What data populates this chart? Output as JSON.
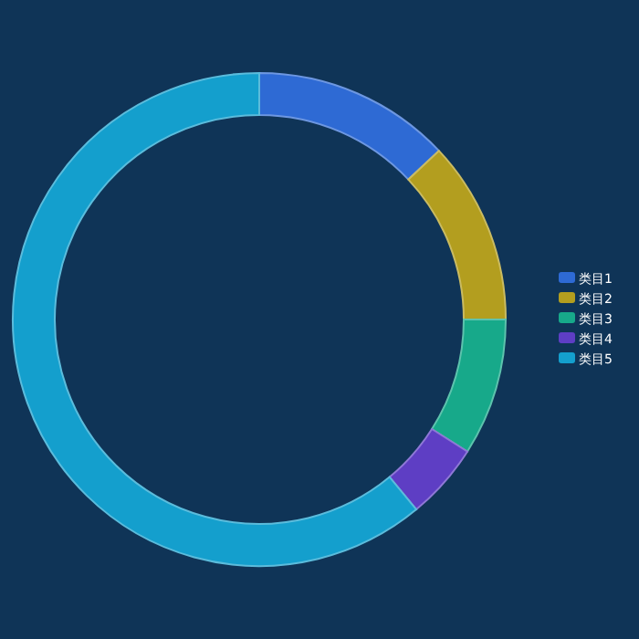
{
  "chart_data": {
    "type": "donut",
    "categories": [
      "类目1",
      "类目2",
      "类目3",
      "类目4",
      "类目5"
    ],
    "values": [
      13,
      12,
      9,
      5,
      61
    ],
    "colors": [
      "#2e6ad4",
      "#b39e1f",
      "#17a98a",
      "#5e3ec4",
      "#149fcd"
    ],
    "legend": "right"
  }
}
